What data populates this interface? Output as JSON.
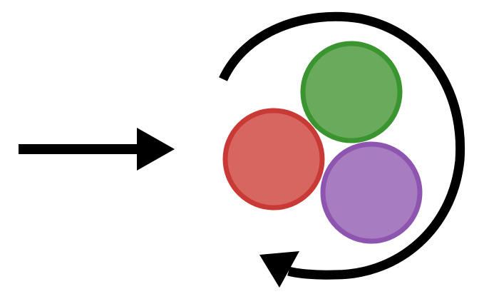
{
  "diagram": {
    "colors": {
      "arrow": "#000000",
      "green_fill": "#6aaa5c",
      "green_stroke": "#3a9430",
      "red_fill": "#d6665f",
      "red_stroke": "#c93a36",
      "purple_fill": "#a87cc0",
      "purple_stroke": "#8d55b0"
    },
    "elements": [
      {
        "name": "straight-arrow",
        "description_icon": "right-arrow-icon"
      },
      {
        "name": "rotation-arrow",
        "description_icon": "clockwise-rotation-arrow-icon"
      },
      {
        "name": "green-circle",
        "color": "green"
      },
      {
        "name": "red-circle",
        "color": "red"
      },
      {
        "name": "purple-circle",
        "color": "purple"
      }
    ]
  }
}
